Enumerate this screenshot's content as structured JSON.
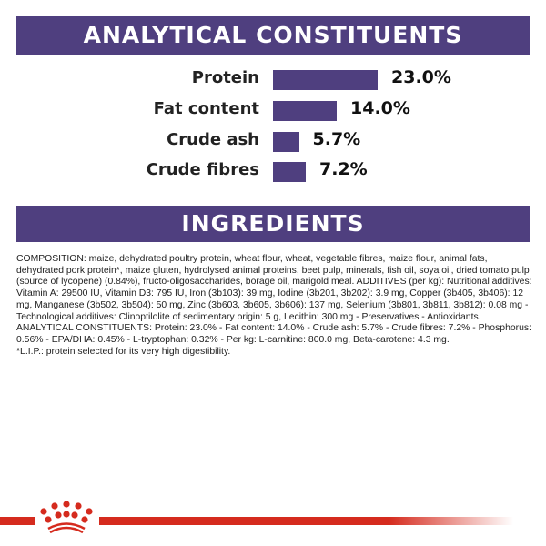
{
  "analytical": {
    "title": "ANALYTICAL CONSTITUENTS",
    "items": [
      {
        "label": "Protein",
        "value": 23.0,
        "display": "23.0%"
      },
      {
        "label": "Fat content",
        "value": 14.0,
        "display": "14.0%"
      },
      {
        "label": "Crude ash",
        "value": 5.7,
        "display": "5.7%"
      },
      {
        "label": "Crude fibres",
        "value": 7.2,
        "display": "7.2%"
      }
    ]
  },
  "ingredients": {
    "title": "INGREDIENTS",
    "text": "COMPOSITION: maize, dehydrated poultry protein, wheat flour, wheat, vegetable fibres, maize flour, animal fats, dehydrated pork protein*, maize gluten, hydrolysed animal proteins, beet pulp, minerals, fish oil, soya oil, dried tomato pulp (source of lycopene) (0.84%), fructo-oligosaccharides, borage oil, marigold meal. ADDITIVES (per kg): Nutritional additives: Vitamin A: 29500 IU, Vitamin D3: 795 IU, Iron (3b103): 39 mg, Iodine (3b201, 3b202): 3.9 mg, Copper (3b405, 3b406): 12 mg, Manganese (3b502, 3b504): 50 mg, Zinc (3b603, 3b605, 3b606): 137 mg, Selenium (3b801, 3b811, 3b812): 0.08 mg - Technological additives: Clinoptilolite of sedimentary origin: 5 g, Lecithin: 300 mg - Preservatives - Antioxidants. ANALYTICAL CONSTITUENTS: Protein: 23.0% - Fat content: 14.0% - Crude ash: 5.7% - Crude fibres: 7.2% - Phosphorus: 0.56% - EPA/DHA: 0.45% - L-tryptophan: 0.32% - Per kg: L-carnitine: 800.0 mg, Beta-carotene: 4.3 mg.",
    "footnote": "*L.I.P.: protein selected for its very high digestibility."
  },
  "colors": {
    "banner": "#4f3f7f",
    "bar": "#4f3f7f",
    "brand_red": "#d52b1e"
  },
  "footer": {
    "logo_icon": "royal-canin-crown-icon"
  }
}
